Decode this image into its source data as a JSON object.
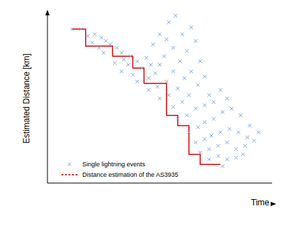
{
  "chart_data": {
    "type": "scatter",
    "xlabel": "Time",
    "ylabel": "Estimated Distance [km]",
    "xlim": [
      0,
      100
    ],
    "ylim": [
      0,
      100
    ],
    "tick_labels": false,
    "grid": false,
    "legend": "lower left",
    "series": [
      {
        "name": "Single lightning events",
        "type": "scatter",
        "marker": "x",
        "color": "#7ea6d8",
        "x": [
          11,
          15,
          18,
          21,
          24,
          26,
          20,
          23,
          28,
          31,
          25,
          33,
          30,
          34,
          37,
          36,
          40,
          33,
          38,
          42,
          44,
          46,
          40,
          45,
          48,
          50,
          52,
          47,
          50,
          54,
          57,
          53,
          56,
          45,
          49,
          53,
          56,
          59,
          62,
          60,
          64,
          66,
          50,
          54,
          58,
          61,
          64,
          68,
          56,
          60,
          63,
          67,
          70,
          72,
          58,
          62,
          66,
          70,
          74,
          77,
          80,
          63,
          67,
          70,
          74,
          78,
          82,
          86,
          90,
          94,
          66,
          70,
          73,
          77,
          81,
          85,
          89,
          92,
          68,
          72,
          76,
          80,
          84,
          88,
          72,
          76,
          80,
          84,
          87,
          78
        ],
        "values": [
          91,
          91,
          87,
          88,
          86,
          84,
          83,
          80,
          82,
          80,
          77,
          77,
          71,
          73,
          75,
          70,
          72,
          66,
          64,
          68,
          74,
          70,
          60,
          62,
          65,
          70,
          75,
          82,
          88,
          95,
          99,
          85,
          80,
          55,
          57,
          60,
          66,
          72,
          78,
          88,
          92,
          84,
          50,
          52,
          56,
          62,
          66,
          72,
          45,
          48,
          52,
          58,
          63,
          52,
          38,
          40,
          44,
          46,
          48,
          55,
          50,
          30,
          33,
          36,
          38,
          42,
          44,
          40,
          34,
          30,
          24,
          26,
          28,
          30,
          32,
          30,
          27,
          25,
          18,
          20,
          22,
          24,
          20,
          22,
          14,
          16,
          14,
          15,
          17,
          10
        ]
      },
      {
        "name": "Distance estimation of the AS3935",
        "type": "step",
        "line_style": "dashed",
        "color": "#e00000",
        "x": [
          11,
          17,
          29,
          38,
          43,
          53,
          58,
          63,
          68,
          77
        ],
        "values": [
          91,
          81,
          75,
          68,
          59,
          40,
          34,
          17,
          11,
          11
        ]
      }
    ]
  }
}
